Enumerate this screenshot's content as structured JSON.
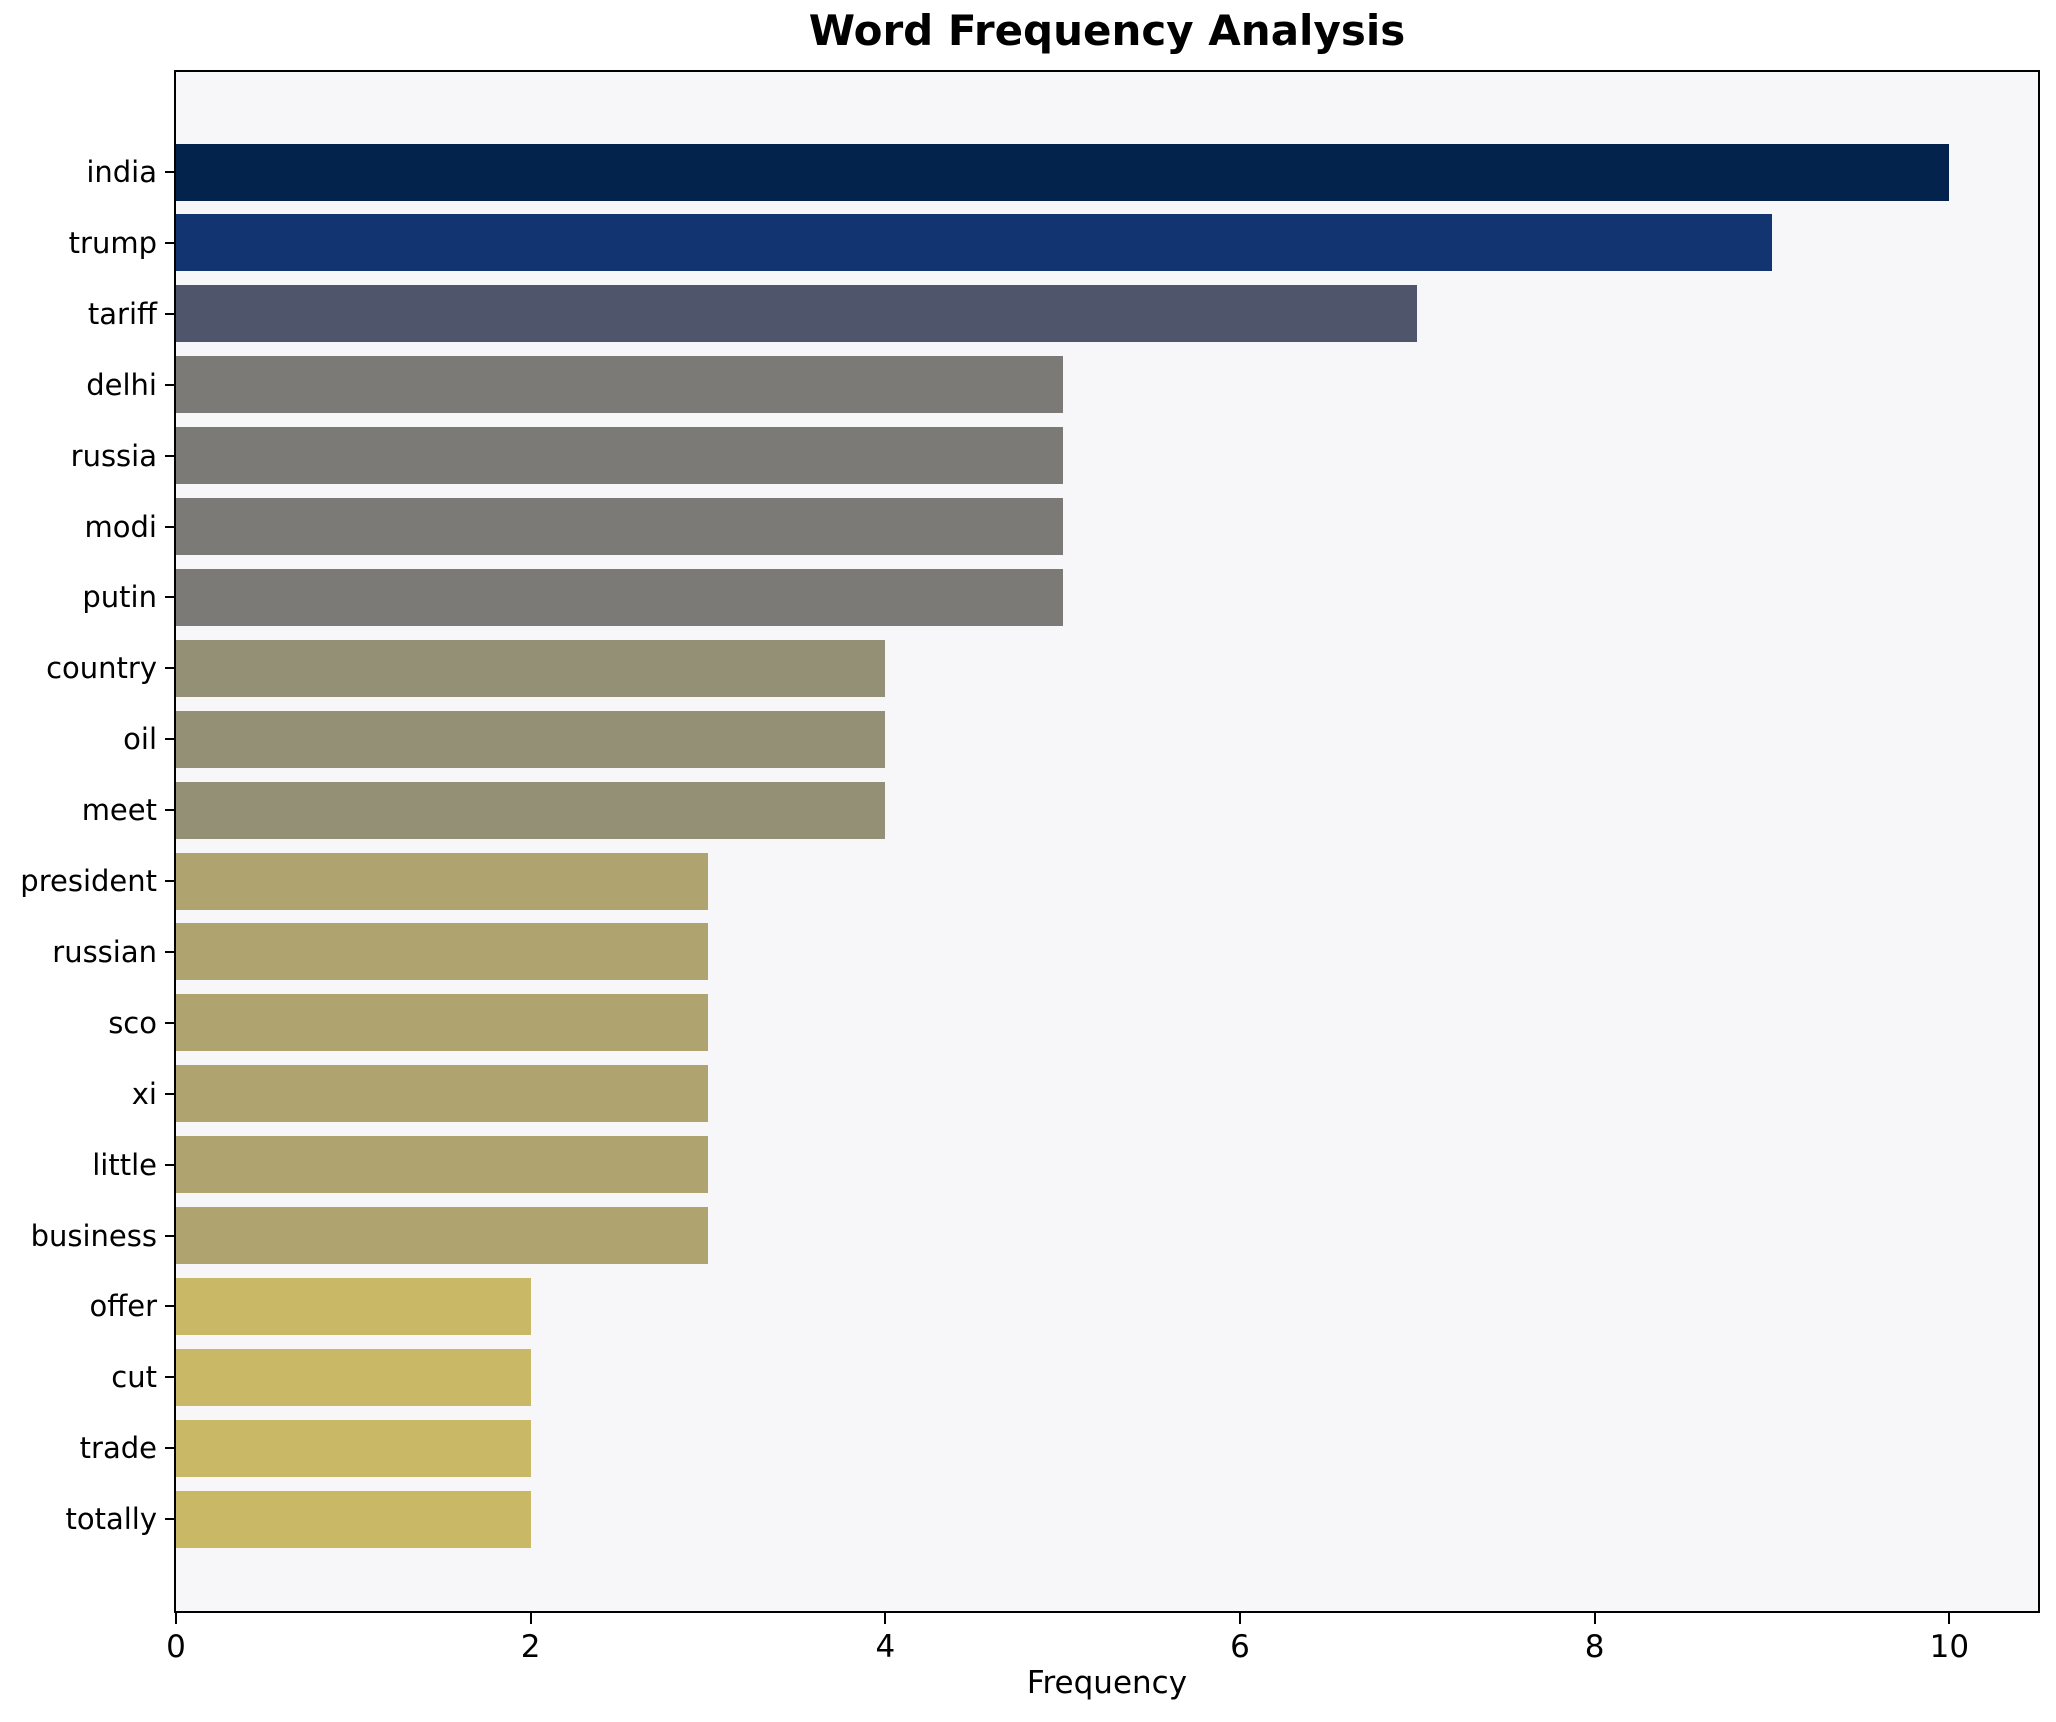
{
  "chart_data": {
    "type": "bar",
    "orientation": "horizontal",
    "title": "Word Frequency Analysis",
    "xlabel": "Frequency",
    "ylabel": "",
    "categories": [
      "india",
      "trump",
      "tariff",
      "delhi",
      "russia",
      "modi",
      "putin",
      "country",
      "oil",
      "meet",
      "president",
      "russian",
      "sco",
      "xi",
      "little",
      "business",
      "offer",
      "cut",
      "trade",
      "totally"
    ],
    "values": [
      10,
      9,
      7,
      5,
      5,
      5,
      5,
      4,
      4,
      4,
      3,
      3,
      3,
      3,
      3,
      3,
      2,
      2,
      2,
      2
    ],
    "bar_colors": [
      "#03234d",
      "#123571",
      "#4f566b",
      "#7b7a77",
      "#7b7a77",
      "#7b7a77",
      "#7b7a77",
      "#949076",
      "#949076",
      "#949076",
      "#afa470",
      "#afa470",
      "#afa470",
      "#afa470",
      "#afa470",
      "#afa470",
      "#c9b866",
      "#c9b866",
      "#c9b866",
      "#c9b866"
    ],
    "xticks": [
      0,
      2,
      4,
      6,
      8,
      10
    ],
    "xlim": [
      0,
      10.5
    ],
    "grid": false,
    "legend": "none",
    "plot_background": "#f7f7f9",
    "figure_background": "#ffffff",
    "spine_color": "#000000",
    "colormap_note": "cividis reversed, mapped by frequency value"
  }
}
